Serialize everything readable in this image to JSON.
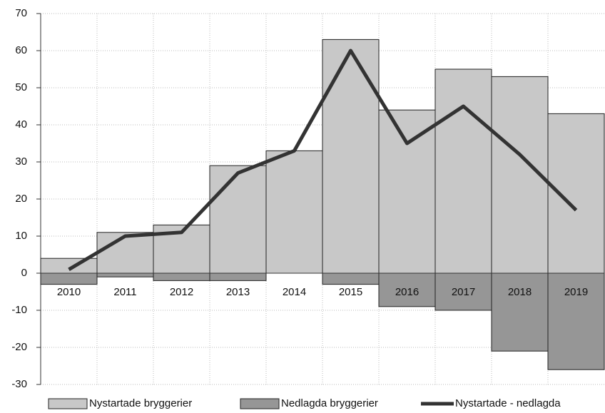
{
  "chart_data": {
    "type": "bar",
    "categories": [
      "2010",
      "2011",
      "2012",
      "2013",
      "2014",
      "2015",
      "2016",
      "2017",
      "2018",
      "2019"
    ],
    "series": [
      {
        "name": "Nystartade bryggerier",
        "type": "bar",
        "color": "#c8c8c8",
        "values": [
          4,
          11,
          13,
          29,
          33,
          63,
          44,
          55,
          53,
          43
        ]
      },
      {
        "name": "Nedlagda bryggerier",
        "type": "bar",
        "color": "#969696",
        "values": [
          -3,
          -1,
          -2,
          -2,
          0,
          -3,
          -9,
          -10,
          -21,
          -26
        ]
      },
      {
        "name": "Nystartade - nedlagda",
        "type": "line",
        "color": "#333333",
        "values": [
          1,
          10,
          11,
          27,
          33,
          60,
          35,
          45,
          32,
          17
        ]
      }
    ],
    "ylim": [
      -30,
      70
    ],
    "yticks": [
      -30,
      -20,
      -10,
      0,
      10,
      20,
      30,
      40,
      50,
      60,
      70
    ],
    "grid": true,
    "legend": "bottom"
  }
}
